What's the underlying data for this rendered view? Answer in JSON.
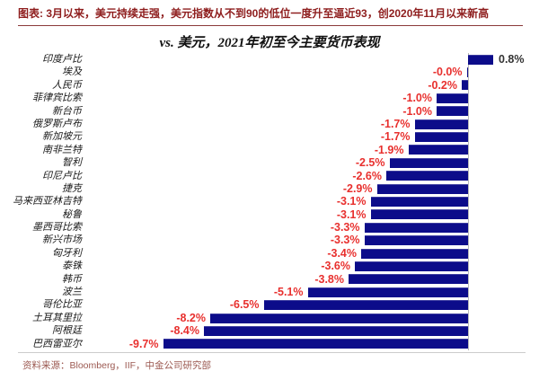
{
  "page": {
    "caption": "图表: 3月以来，美元持续走强，美元指数从不到90的低位一度升至逼近93，创2020年11月以来新高",
    "source": "资料来源：Bloomberg，IIF，中金公司研究部"
  },
  "chart_data": {
    "type": "bar",
    "orientation": "horizontal",
    "title": "vs. 美元，2021年初至今主要货币表现",
    "xlabel": "",
    "ylabel": "",
    "xlim": [
      -10.5,
      1.2
    ],
    "grid": false,
    "legend": "none",
    "categories": [
      "印度卢比",
      "埃及",
      "人民币",
      "菲律宾比索",
      "新台币",
      "俄罗斯卢布",
      "新加坡元",
      "南非兰特",
      "智利",
      "印尼卢比",
      "捷克",
      "马来西亚林吉特",
      "秘鲁",
      "墨西哥比索",
      "新兴市场",
      "匈牙利",
      "泰铢",
      "韩币",
      "波兰",
      "哥伦比亚",
      "土耳其里拉",
      "阿根廷",
      "巴西雷亚尔"
    ],
    "values": [
      0.8,
      -0.0,
      -0.2,
      -1.0,
      -1.0,
      -1.7,
      -1.7,
      -1.9,
      -2.5,
      -2.6,
      -2.9,
      -3.1,
      -3.1,
      -3.3,
      -3.3,
      -3.4,
      -3.6,
      -3.8,
      -5.1,
      -6.5,
      -8.2,
      -8.4,
      -9.7
    ],
    "value_labels": [
      "0.8%",
      "-0.0%",
      "-0.2%",
      "-1.0%",
      "-1.0%",
      "-1.7%",
      "-1.7%",
      "-1.9%",
      "-2.5%",
      "-2.6%",
      "-2.9%",
      "-3.1%",
      "-3.1%",
      "-3.3%",
      "-3.3%",
      "-3.4%",
      "-3.6%",
      "-3.8%",
      "-5.1%",
      "-6.5%",
      "-8.2%",
      "-8.4%",
      "-9.7%"
    ],
    "colors": {
      "bar": "#0c0c8a",
      "negative_label": "#e8302e",
      "positive_label": "#333333",
      "title_red": "#8e1d1d"
    }
  }
}
